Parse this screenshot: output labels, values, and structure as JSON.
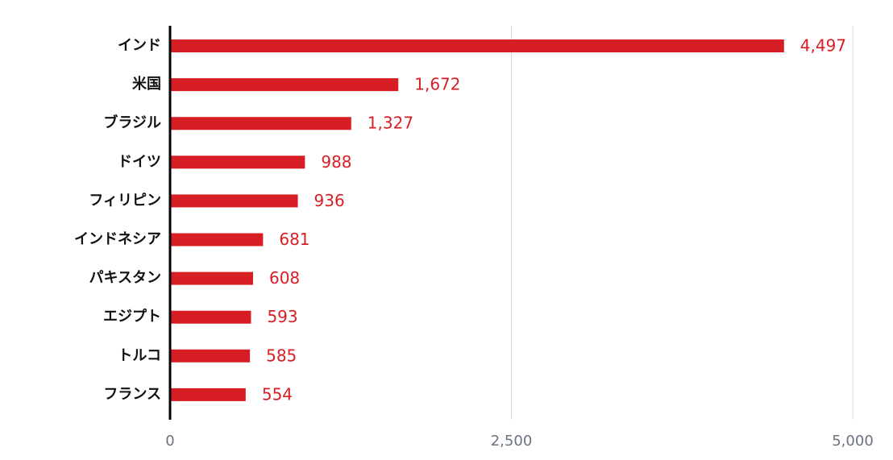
{
  "chart_data": {
    "type": "bar",
    "orientation": "horizontal",
    "categories": [
      "インド",
      "米国",
      "ブラジル",
      "ドイツ",
      "フィリピン",
      "インドネシア",
      "パキスタン",
      "エジプト",
      "トルコ",
      "フランス"
    ],
    "values": [
      4497,
      1672,
      1327,
      988,
      936,
      681,
      608,
      593,
      585,
      554
    ],
    "value_labels": [
      "4,497",
      "1,672",
      "1,327",
      "988",
      "936",
      "681",
      "608",
      "593",
      "585",
      "554"
    ],
    "color": "#d81e25",
    "xlim": [
      0,
      5000
    ],
    "xticks": [
      0,
      {
        "value": 2500,
        "label": "2,500"
      },
      {
        "value": 5000,
        "label": "5,000"
      }
    ],
    "grid": true
  }
}
